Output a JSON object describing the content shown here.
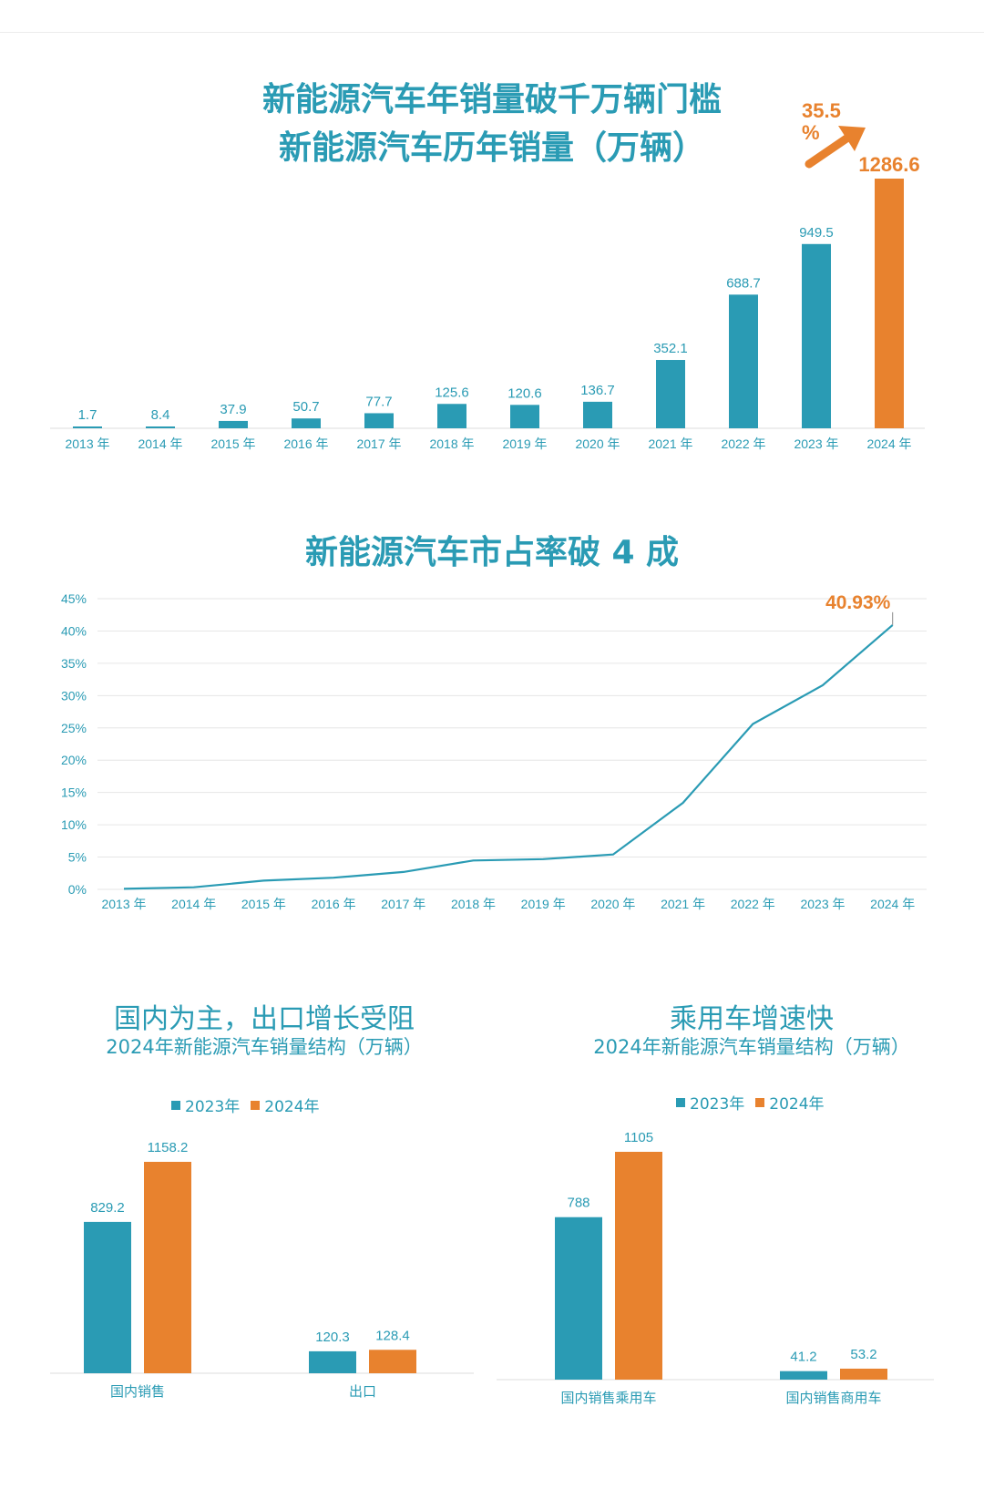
{
  "colors": {
    "teal": "#2a9bb4",
    "orange": "#e8822e",
    "axis_text": "#2a9bb4",
    "grid": "#e6e6e6"
  },
  "chart1": {
    "title_line1": "新能源汽车年销量破千万辆门槛",
    "title_line2": "新能源汽车历年销量（万辆）",
    "growth_value": "35.5",
    "growth_unit": "%",
    "chart_data": {
      "type": "bar",
      "categories": [
        "2013 年",
        "2014 年",
        "2015 年",
        "2016 年",
        "2017 年",
        "2018 年",
        "2019 年",
        "2020 年",
        "2021 年",
        "2022 年",
        "2023 年",
        "2024 年"
      ],
      "values": [
        1.7,
        8.4,
        37.9,
        50.7,
        77.7,
        125.6,
        120.6,
        136.7,
        352.1,
        688.7,
        949.5,
        1286.6
      ],
      "value_labels": [
        "1.7",
        "8.4",
        "37.9",
        "50.7",
        "77.7",
        "125.6",
        "120.6",
        "136.7",
        "352.1",
        "688.7",
        "949.5",
        "1286.6"
      ],
      "highlight_index": 11
    }
  },
  "chart2": {
    "title": "新能源汽车市占率破 4 成",
    "end_label": "40.93%",
    "chart_data": {
      "type": "line",
      "categories": [
        "2013 年",
        "2014 年",
        "2015 年",
        "2016 年",
        "2017 年",
        "2018 年",
        "2019 年",
        "2020 年",
        "2021 年",
        "2022 年",
        "2023 年",
        "2024 年"
      ],
      "values": [
        0.08,
        0.32,
        1.35,
        1.8,
        2.7,
        4.47,
        4.68,
        5.4,
        13.4,
        25.6,
        31.6,
        40.93
      ],
      "yticks": [
        "0%",
        "5%",
        "10%",
        "15%",
        "20%",
        "25%",
        "30%",
        "35%",
        "40%",
        "45%"
      ],
      "ylim": [
        0,
        45
      ],
      "grid": true
    }
  },
  "chart3": {
    "title": "国内为主，出口增长受阻",
    "subtitle": "2024年新能源汽车销量结构（万辆）",
    "legend": [
      "2023年",
      "2024年"
    ],
    "chart_data": {
      "type": "bar",
      "categories": [
        "国内销售",
        "出口"
      ],
      "series": [
        {
          "name": "2023年",
          "values": [
            829.2,
            120.3
          ],
          "labels": [
            "829.2",
            "120.3"
          ]
        },
        {
          "name": "2024年",
          "values": [
            1158.2,
            128.4
          ],
          "labels": [
            "1158.2",
            "128.4"
          ]
        }
      ]
    }
  },
  "chart4": {
    "title": "乘用车增速快",
    "subtitle": "2024年新能源汽车销量结构（万辆）",
    "legend": [
      "2023年",
      "2024年"
    ],
    "chart_data": {
      "type": "bar",
      "categories": [
        "国内销售乘用车",
        "国内销售商用车"
      ],
      "series": [
        {
          "name": "2023年",
          "values": [
            788,
            41.2
          ],
          "labels": [
            "788",
            "41.2"
          ]
        },
        {
          "name": "2024年",
          "values": [
            1105,
            53.2
          ],
          "labels": [
            "1105",
            "53.2"
          ]
        }
      ]
    }
  }
}
